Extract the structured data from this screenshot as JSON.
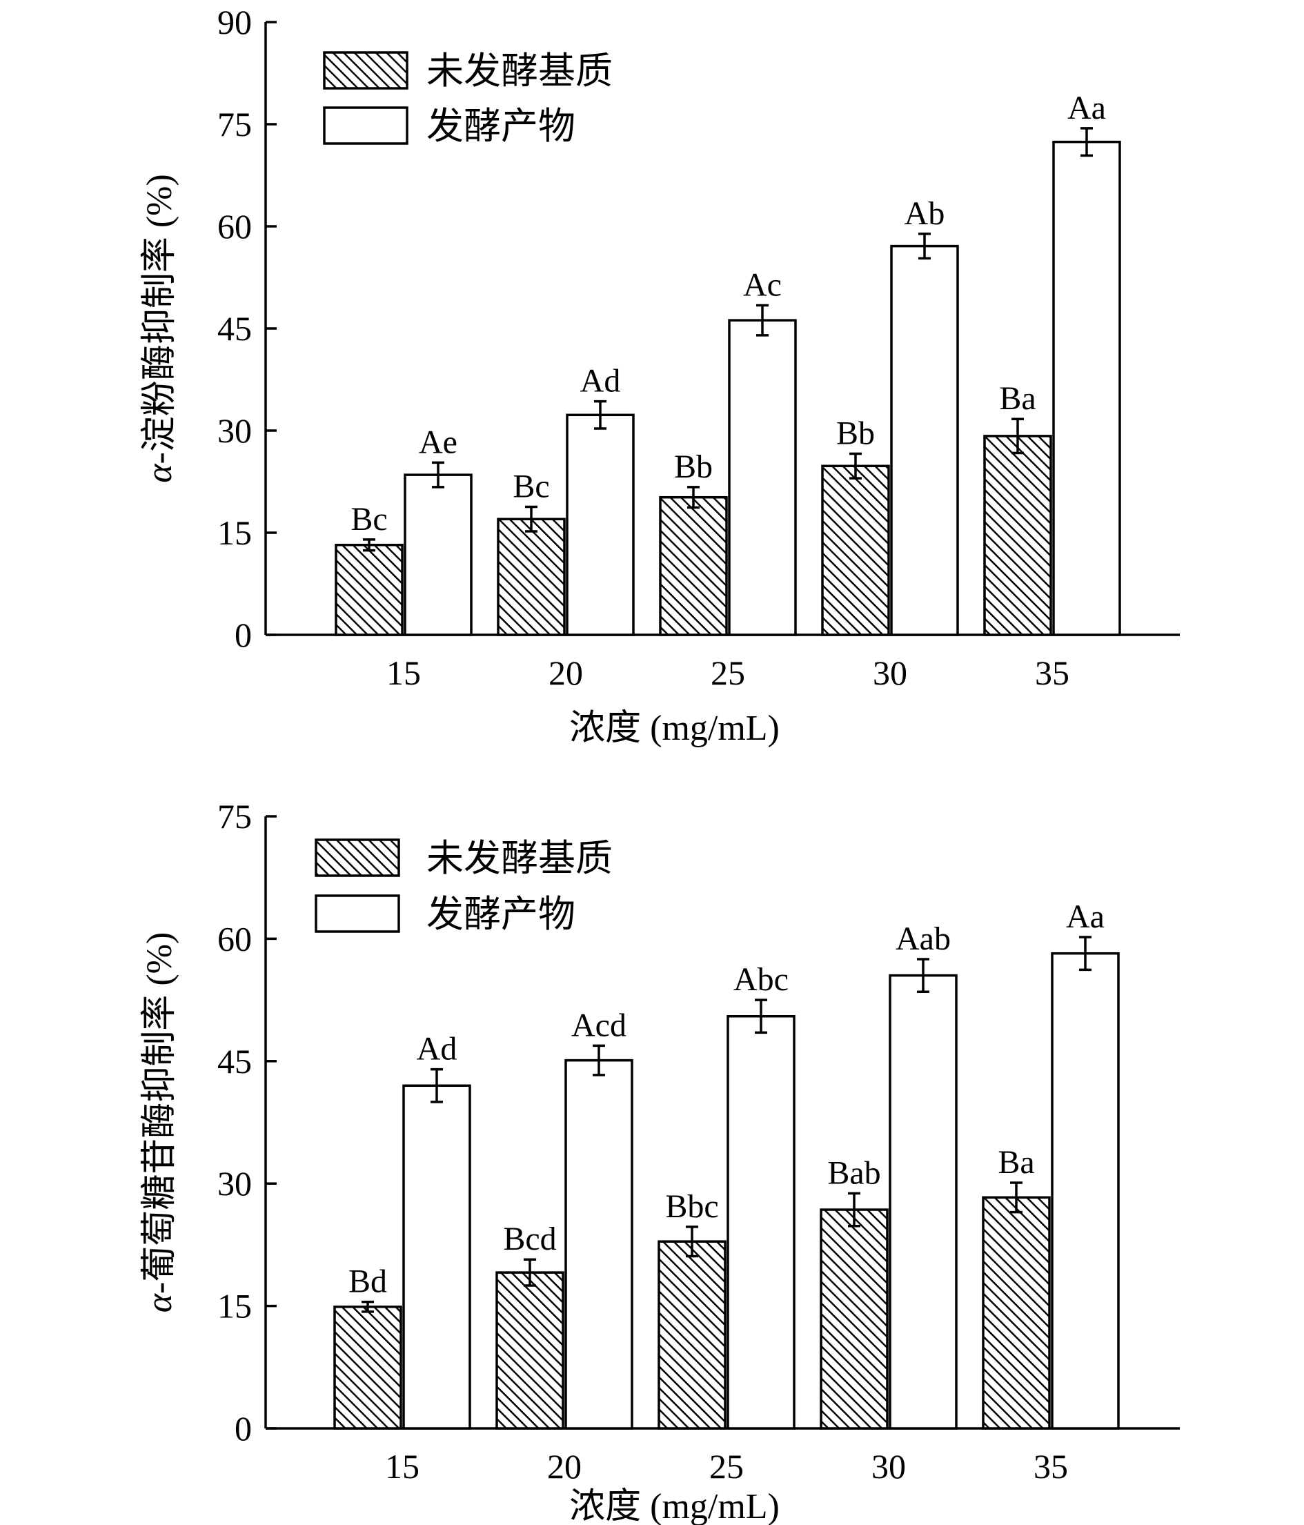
{
  "chart_data": [
    {
      "type": "bar",
      "ylabel_prefix": "α",
      "ylabel": "-淀粉酶抑制率 (%)",
      "xlabel": "浓度 (mg/mL)",
      "categories": [
        "15",
        "20",
        "25",
        "30",
        "35"
      ],
      "ylim": [
        0,
        90
      ],
      "yticks": [
        0,
        15,
        30,
        45,
        60,
        75,
        90
      ],
      "legend_position": "top-left",
      "grid": false,
      "series": [
        {
          "name": "未发酵基质",
          "style": "hatched",
          "values": [
            13.2,
            17.0,
            20.2,
            24.8,
            29.2
          ],
          "errors": [
            0.8,
            1.8,
            1.5,
            1.8,
            2.5
          ],
          "labels": [
            "Bc",
            "Bc",
            "Bb",
            "Bb",
            "Ba"
          ]
        },
        {
          "name": "发酵产物",
          "style": "open",
          "values": [
            23.5,
            32.3,
            46.2,
            57.1,
            72.4
          ],
          "errors": [
            1.8,
            2.0,
            2.2,
            1.8,
            2.0
          ],
          "labels": [
            "Ae",
            "Ad",
            "Ac",
            "Ab",
            "Aa"
          ]
        }
      ]
    },
    {
      "type": "bar",
      "ylabel_prefix": "α",
      "ylabel": "-葡萄糖苷酶抑制率 (%)",
      "xlabel": "浓度 (mg/mL)",
      "categories": [
        "15",
        "20",
        "25",
        "30",
        "35"
      ],
      "ylim": [
        0,
        75
      ],
      "yticks": [
        0,
        15,
        30,
        45,
        60,
        75
      ],
      "legend_position": "top-left",
      "grid": false,
      "series": [
        {
          "name": "未发酵基质",
          "style": "hatched",
          "values": [
            14.9,
            19.1,
            22.9,
            26.8,
            28.3
          ],
          "errors": [
            0.6,
            1.6,
            1.8,
            2.0,
            1.8
          ],
          "labels": [
            "Bd",
            "Bcd",
            "Bbc",
            "Bab",
            "Ba"
          ]
        },
        {
          "name": "发酵产物",
          "style": "open",
          "values": [
            42.0,
            45.1,
            50.5,
            55.5,
            58.2
          ],
          "errors": [
            2.0,
            1.8,
            2.0,
            2.0,
            2.0
          ],
          "labels": [
            "Ad",
            "Acd",
            "Abc",
            "Aab",
            "Aa"
          ]
        }
      ]
    }
  ]
}
